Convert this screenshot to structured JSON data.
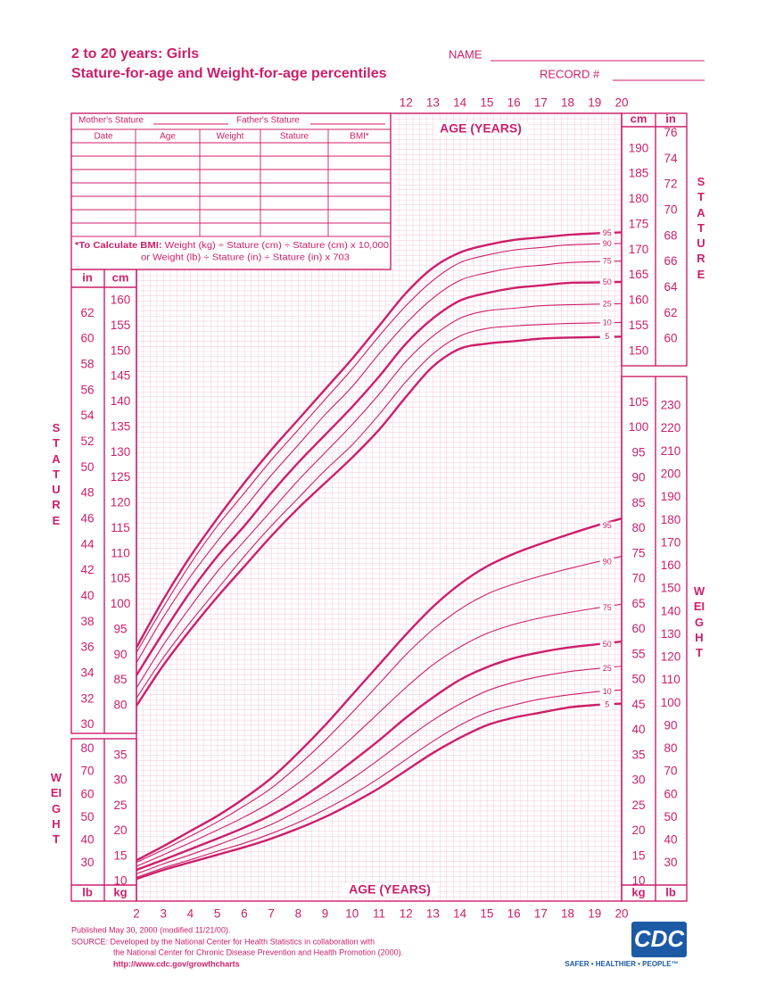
{
  "header": {
    "title": "2 to 20 years: Girls",
    "subtitle": "Stature-for-age and Weight-for-age percentiles",
    "name_label": "NAME",
    "record_label": "RECORD #"
  },
  "record_table": {
    "mothers_stature": "Mother's Stature",
    "fathers_stature": "Father's Stature",
    "columns": [
      "Date",
      "Age",
      "Weight",
      "Stature",
      "BMI*"
    ],
    "bmi_note_lead": "*To Calculate BMI:",
    "bmi_note": [
      "Weight (kg) ÷ Stature (cm) ÷ Stature (cm) x 10,000",
      "or Weight (lb) ÷ Stature (in) ÷ Stature (in) x 703"
    ]
  },
  "chart_data": [
    {
      "type": "line",
      "x_label": "AGE (YEARS)",
      "y_label_left": "STATURE",
      "y_label_right": "STATURE",
      "y_unit_left": "cm",
      "y_unit_right": "cm",
      "y2_unit_left": "in",
      "y2_unit_right": "in",
      "x": [
        2,
        3,
        4,
        5,
        6,
        7,
        8,
        9,
        10,
        11,
        12,
        13,
        14,
        15,
        16,
        17,
        18,
        19,
        20
      ],
      "xlim": [
        2,
        20
      ],
      "xticks": [
        12,
        13,
        14,
        15,
        16,
        17,
        18,
        19,
        20
      ],
      "ylim": [
        76,
        194
      ],
      "yticks": [
        80,
        85,
        90,
        95,
        100,
        105,
        110,
        115,
        120,
        125,
        130,
        135,
        140,
        145,
        150,
        155,
        160
      ],
      "yticks_right": [
        150,
        155,
        160,
        165,
        170,
        175,
        180,
        185,
        190
      ],
      "y2lim": [
        29.921,
        76.378
      ],
      "y2ticks": [
        30,
        32,
        34,
        36,
        38,
        40,
        42,
        44,
        46,
        48,
        50,
        52,
        54,
        56,
        58,
        60,
        62
      ],
      "y2ticks_right": [
        60,
        62,
        64,
        66,
        68,
        70,
        72,
        74,
        76
      ],
      "grid": true,
      "color": "#cc1f6a",
      "series": [
        {
          "name": "95",
          "line_width": 2.4,
          "values": [
            91.5,
            101,
            109.5,
            117,
            124,
            130.5,
            136.5,
            142.5,
            148.5,
            155,
            161.5,
            166.5,
            169.5,
            171,
            172,
            172.5,
            173,
            173.3,
            173.5
          ]
        },
        {
          "name": "90",
          "line_width": 1.1,
          "values": [
            90.5,
            99.5,
            108,
            115.5,
            122,
            128.5,
            134.5,
            140.5,
            146.5,
            153,
            159,
            164,
            167.5,
            169,
            170,
            170.5,
            171,
            171.2,
            171.3
          ]
        },
        {
          "name": "75",
          "line_width": 1.1,
          "values": [
            88.5,
            97.5,
            105.5,
            112.5,
            119,
            125.5,
            131.5,
            137.5,
            143,
            149.5,
            155.5,
            160.5,
            164,
            165.5,
            166.5,
            167,
            167.5,
            167.7,
            167.8
          ]
        },
        {
          "name": "50",
          "line_width": 2.4,
          "values": [
            86,
            94.5,
            102.5,
            109.5,
            115.5,
            122,
            128,
            133.5,
            139,
            145,
            151.5,
            156.5,
            160,
            161.5,
            162.5,
            163,
            163.5,
            163.6,
            163.7
          ]
        },
        {
          "name": "25",
          "line_width": 1.1,
          "values": [
            83.5,
            92,
            99.5,
            106.5,
            112.5,
            118.5,
            124.5,
            130,
            135.5,
            141.5,
            148,
            153,
            156.5,
            158,
            158.5,
            159,
            159.2,
            159.3,
            159.4
          ]
        },
        {
          "name": "10",
          "line_width": 1.1,
          "values": [
            81.5,
            89.5,
            96.5,
            103,
            109.5,
            115.5,
            121,
            126.5,
            131.5,
            137.5,
            144,
            149.5,
            153,
            154.5,
            155,
            155.3,
            155.5,
            155.6,
            155.7
          ]
        },
        {
          "name": "5",
          "line_width": 2.4,
          "values": [
            80,
            88,
            95,
            101.5,
            107.5,
            113.5,
            119,
            124,
            129,
            134.5,
            141,
            147,
            150.5,
            151.5,
            152,
            152.5,
            152.7,
            152.8,
            152.9
          ]
        }
      ]
    },
    {
      "type": "line",
      "x_label": "AGE (YEARS)",
      "y_label_left": "WEIGHT",
      "y_label_right": "WEIGHT",
      "y_unit_left": "kg",
      "y_unit_right": "kg",
      "y2_unit_left": "lb",
      "y2_unit_right": "lb",
      "x": [
        2,
        3,
        4,
        5,
        6,
        7,
        8,
        9,
        10,
        11,
        12,
        13,
        14,
        15,
        16,
        17,
        18,
        19,
        20
      ],
      "xlim": [
        2,
        20
      ],
      "xticks": [
        2,
        3,
        4,
        5,
        6,
        7,
        8,
        9,
        10,
        11,
        12,
        13,
        14,
        15,
        16,
        17,
        18,
        19,
        20
      ],
      "ylim": [
        8,
        108
      ],
      "yticks": [
        10,
        15,
        20,
        25,
        30,
        35
      ],
      "yticks_right": [
        10,
        15,
        20,
        25,
        30,
        35,
        40,
        45,
        50,
        55,
        60,
        65,
        70,
        75,
        80,
        85,
        90,
        95,
        100,
        105
      ],
      "y2lim": [
        17.637,
        238.099
      ],
      "y2ticks": [
        30,
        40,
        50,
        60,
        70,
        80
      ],
      "y2ticks_right": [
        30,
        40,
        50,
        60,
        70,
        80,
        90,
        100,
        110,
        120,
        130,
        140,
        150,
        160,
        170,
        180,
        190,
        200,
        210,
        220,
        230
      ],
      "grid": true,
      "color": "#cc1f6a",
      "series": [
        {
          "name": "95",
          "line_width": 2.4,
          "values": [
            14.2,
            17,
            20,
            23,
            26.5,
            30.5,
            35.5,
            41,
            47,
            53,
            59,
            64.5,
            69,
            72.5,
            75,
            77,
            78.8,
            80.5,
            82
          ]
        },
        {
          "name": "90",
          "line_width": 1.1,
          "values": [
            13.8,
            16.3,
            19,
            21.8,
            25,
            28.5,
            33,
            38,
            43.5,
            49.2,
            55,
            60,
            64,
            67,
            69,
            70.6,
            72,
            73.3,
            74.5
          ]
        },
        {
          "name": "75",
          "line_width": 1.1,
          "values": [
            13,
            15.3,
            17.7,
            20.2,
            22.8,
            25.8,
            29.5,
            33.8,
            38.5,
            43.5,
            48.5,
            53,
            56.5,
            59.2,
            61,
            62.3,
            63.3,
            64.2,
            65
          ]
        },
        {
          "name": "50",
          "line_width": 2.4,
          "values": [
            12.3,
            14.3,
            16.4,
            18.5,
            20.7,
            23.2,
            26.2,
            29.8,
            33.8,
            38,
            42.5,
            46.5,
            50,
            52.5,
            54.3,
            55.5,
            56.4,
            57,
            57.6
          ]
        },
        {
          "name": "25",
          "line_width": 1.1,
          "values": [
            11.5,
            13.5,
            15.3,
            17.2,
            19.2,
            21.3,
            24,
            27,
            30.4,
            34.2,
            38.2,
            42,
            45.2,
            47.8,
            49.5,
            50.7,
            51.6,
            52.2,
            52.7
          ]
        },
        {
          "name": "10",
          "line_width": 1.1,
          "values": [
            10.8,
            12.7,
            14.3,
            16,
            17.6,
            19.5,
            21.7,
            24.3,
            27.2,
            30.5,
            34.2,
            37.8,
            41,
            43.5,
            45,
            46.2,
            47,
            47.6,
            48
          ]
        },
        {
          "name": "5",
          "line_width": 2.4,
          "values": [
            10.5,
            12.3,
            13.8,
            15.3,
            16.8,
            18.5,
            20.5,
            22.8,
            25.5,
            28.5,
            32,
            35.5,
            38.5,
            41,
            42.5,
            43.5,
            44.5,
            45,
            45.3
          ]
        }
      ]
    }
  ],
  "footer": {
    "published": "Published May 30, 2000 (modified 11/21/00).",
    "source": [
      "SOURCE: Developed by the National Center for Health Statistics in collaboration with",
      "the National Center for Chronic Disease Prevention and Health Promotion (2000)."
    ],
    "url": "http://www.cdc.gov/growthcharts",
    "logo": "CDC",
    "tagline": "SAFER • HEALTHIER • PEOPLE™"
  }
}
